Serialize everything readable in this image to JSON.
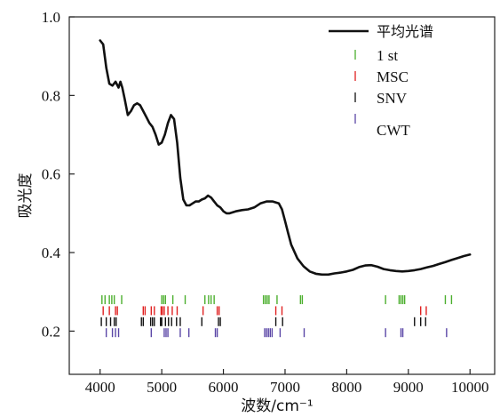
{
  "chart_data": {
    "type": "line",
    "xlabel": "波数/cm⁻¹",
    "ylabel": "吸光度",
    "xlim": [
      3500,
      10400
    ],
    "ylim": [
      0.09,
      1.0
    ],
    "xticks": [
      4000,
      5000,
      6000,
      7000,
      8000,
      9000,
      10000
    ],
    "yticks": [
      0.2,
      0.4,
      0.6,
      0.8,
      1.0
    ],
    "ytick_labels": [
      "0.2",
      "0.4",
      "0.6",
      "0.8",
      "1.0"
    ],
    "legend_position": "top-right",
    "series": [
      {
        "name": "平均光谱",
        "kind": "line",
        "color": "#111111",
        "x": [
          4000,
          4050,
          4100,
          4150,
          4200,
          4250,
          4300,
          4330,
          4360,
          4400,
          4450,
          4500,
          4550,
          4600,
          4650,
          4700,
          4750,
          4800,
          4850,
          4900,
          4950,
          5000,
          5050,
          5100,
          5150,
          5200,
          5250,
          5300,
          5350,
          5400,
          5450,
          5500,
          5550,
          5600,
          5650,
          5700,
          5750,
          5800,
          5850,
          5900,
          5950,
          6000,
          6050,
          6100,
          6200,
          6300,
          6400,
          6500,
          6600,
          6700,
          6800,
          6900,
          6950,
          7000,
          7050,
          7100,
          7200,
          7300,
          7400,
          7500,
          7600,
          7700,
          7800,
          7900,
          8000,
          8100,
          8200,
          8300,
          8400,
          8500,
          8600,
          8700,
          8800,
          8900,
          9000,
          9100,
          9200,
          9300,
          9400,
          9500,
          9600,
          9700,
          9800,
          9900,
          10000
        ],
        "y": [
          0.94,
          0.93,
          0.87,
          0.83,
          0.825,
          0.835,
          0.82,
          0.835,
          0.82,
          0.79,
          0.75,
          0.76,
          0.775,
          0.78,
          0.775,
          0.76,
          0.745,
          0.73,
          0.72,
          0.7,
          0.675,
          0.68,
          0.7,
          0.73,
          0.75,
          0.74,
          0.68,
          0.59,
          0.535,
          0.52,
          0.52,
          0.525,
          0.53,
          0.53,
          0.535,
          0.538,
          0.545,
          0.54,
          0.53,
          0.52,
          0.515,
          0.505,
          0.5,
          0.5,
          0.505,
          0.508,
          0.51,
          0.515,
          0.525,
          0.53,
          0.53,
          0.525,
          0.51,
          0.48,
          0.45,
          0.42,
          0.385,
          0.365,
          0.352,
          0.346,
          0.344,
          0.344,
          0.347,
          0.349,
          0.352,
          0.356,
          0.363,
          0.367,
          0.368,
          0.364,
          0.358,
          0.355,
          0.353,
          0.352,
          0.353,
          0.355,
          0.358,
          0.362,
          0.366,
          0.371,
          0.376,
          0.381,
          0.386,
          0.391,
          0.395
        ]
      },
      {
        "name": "1 st",
        "kind": "ticks",
        "color": "#4caf2e",
        "baseline": 0.28,
        "x": [
          4030,
          4080,
          4150,
          4190,
          4230,
          4350,
          5000,
          5030,
          5060,
          5180,
          5380,
          5700,
          5760,
          5800,
          5850,
          6650,
          6680,
          6710,
          6740,
          6870,
          7250,
          7280,
          8630,
          8850,
          8880,
          8910,
          8940,
          9600,
          9700
        ]
      },
      {
        "name": "MSC",
        "kind": "ticks",
        "color": "#e02020",
        "baseline": 0.252,
        "x": [
          4050,
          4150,
          4250,
          4280,
          4700,
          4730,
          4830,
          4880,
          4990,
          5010,
          5040,
          5100,
          5170,
          5250,
          5670,
          5900,
          5930,
          6850,
          6950,
          9200,
          9290
        ]
      },
      {
        "name": "SNV",
        "kind": "ticks",
        "color": "#111111",
        "baseline": 0.224,
        "x": [
          4020,
          4100,
          4170,
          4230,
          4260,
          4670,
          4700,
          4820,
          4850,
          4880,
          4980,
          5000,
          5060,
          5110,
          5160,
          5240,
          5300,
          5650,
          5920,
          5950,
          6850,
          6960,
          9100,
          9200,
          9280
        ]
      },
      {
        "name": "CWT",
        "kind": "ticks",
        "color": "#5a46a6",
        "baseline": 0.196,
        "x": [
          4100,
          4200,
          4250,
          4300,
          4830,
          5040,
          5070,
          5100,
          5300,
          5440,
          5870,
          5900,
          6670,
          6700,
          6730,
          6760,
          6790,
          6920,
          7310,
          8630,
          8880,
          8910,
          9620
        ]
      }
    ]
  }
}
